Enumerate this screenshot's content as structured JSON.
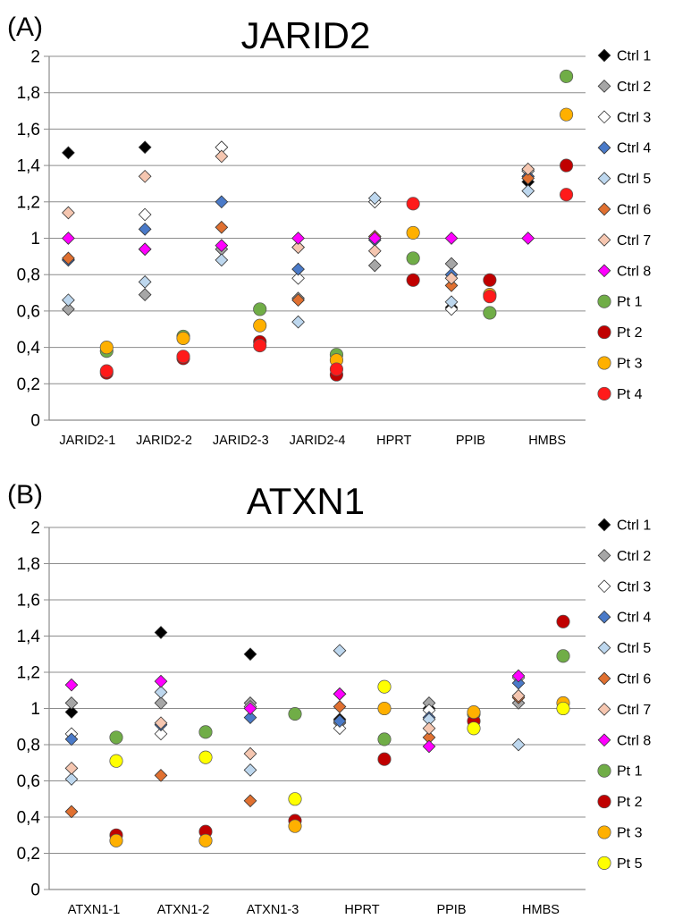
{
  "panels": [
    {
      "label": "(A)",
      "chart_data": {
        "type": "scatter",
        "title": "JARID2",
        "xlabel": "",
        "ylabel": "",
        "ylim": [
          0,
          2
        ],
        "yticks": [
          "0",
          "0,2",
          "0,4",
          "0,6",
          "0,8",
          "1",
          "1,2",
          "1,4",
          "1,6",
          "1,8",
          "2"
        ],
        "grid": true,
        "legend": "right",
        "categories": [
          "JARID2-1",
          "JARID2-2",
          "JARID2-3",
          "JARID2-4",
          "HPRT",
          "PPIB",
          "HMBS"
        ],
        "series": [
          {
            "name": "Ctrl 1",
            "marker": "diamond",
            "color": "#000000",
            "group": "ctrl",
            "values": [
              1.47,
              1.5,
              1.5,
              0.95,
              1.2,
              0.62,
              1.31
            ]
          },
          {
            "name": "Ctrl 2",
            "marker": "diamond",
            "color": "#a6a6a6",
            "group": "ctrl",
            "values": [
              0.61,
              0.69,
              0.94,
              0.67,
              0.85,
              0.86,
              1.37
            ]
          },
          {
            "name": "Ctrl 3",
            "marker": "diamond",
            "color": "#ffffff",
            "group": "ctrl",
            "values": [
              0.88,
              1.13,
              1.5,
              0.78,
              1.2,
              0.61,
              1.37
            ]
          },
          {
            "name": "Ctrl 4",
            "marker": "diamond",
            "color": "#4a7ac8",
            "group": "ctrl",
            "values": [
              0.88,
              1.05,
              1.2,
              0.83,
              0.99,
              0.8,
              1.34
            ]
          },
          {
            "name": "Ctrl 5",
            "marker": "diamond",
            "color": "#bdd7ee",
            "group": "ctrl",
            "values": [
              0.66,
              0.76,
              0.88,
              0.54,
              1.22,
              0.65,
              1.26
            ]
          },
          {
            "name": "Ctrl 6",
            "marker": "diamond",
            "color": "#e07030",
            "group": "ctrl",
            "values": [
              0.89,
              0.94,
              1.06,
              0.66,
              1.01,
              0.74,
              1.33
            ]
          },
          {
            "name": "Ctrl 7",
            "marker": "diamond",
            "color": "#f5c6b0",
            "group": "ctrl",
            "values": [
              1.14,
              1.34,
              1.45,
              0.95,
              0.93,
              0.78,
              1.38
            ]
          },
          {
            "name": "Ctrl 8",
            "marker": "diamond",
            "color": "#ff00ff",
            "group": "ctrl",
            "values": [
              1.0,
              0.94,
              0.96,
              1.0,
              1.0,
              1.0,
              1.0
            ]
          },
          {
            "name": "Pt 1",
            "marker": "circle",
            "color": "#70ad47",
            "group": "pt",
            "values": [
              0.38,
              0.46,
              0.61,
              0.36,
              0.89,
              0.59,
              1.89
            ]
          },
          {
            "name": "Pt 2",
            "marker": "circle",
            "color": "#c00000",
            "group": "pt",
            "values": [
              0.26,
              0.34,
              0.43,
              0.25,
              0.77,
              0.77,
              1.4
            ]
          },
          {
            "name": "Pt 3",
            "marker": "circle",
            "color": "#ffb000",
            "group": "pt",
            "values": [
              0.4,
              0.45,
              0.52,
              0.33,
              1.03,
              0.69,
              1.68
            ]
          },
          {
            "name": "Pt 4",
            "marker": "circle",
            "color": "#ff1a1a",
            "group": "pt",
            "values": [
              0.27,
              0.35,
              0.41,
              0.28,
              1.19,
              0.68,
              1.24
            ]
          }
        ]
      }
    },
    {
      "label": "(B)",
      "chart_data": {
        "type": "scatter",
        "title": "ATXN1",
        "xlabel": "",
        "ylabel": "",
        "ylim": [
          0,
          2
        ],
        "yticks": [
          "0",
          "0,2",
          "0,4",
          "0,6",
          "0,8",
          "1",
          "1,2",
          "1,4",
          "1,6",
          "1,8",
          "2"
        ],
        "grid": true,
        "legend": "right",
        "categories": [
          "ATXN1-1",
          "ATXN1-2",
          "ATXN1-3",
          "HPRT",
          "PPIB",
          "HMBS"
        ],
        "series": [
          {
            "name": "Ctrl 1",
            "marker": "diamond",
            "color": "#000000",
            "group": "ctrl",
            "values": [
              0.98,
              1.42,
              1.3,
              0.94,
              1.0,
              1.07
            ]
          },
          {
            "name": "Ctrl 2",
            "marker": "diamond",
            "color": "#a6a6a6",
            "group": "ctrl",
            "values": [
              1.03,
              1.03,
              1.03,
              0.92,
              1.03,
              1.03
            ]
          },
          {
            "name": "Ctrl 3",
            "marker": "diamond",
            "color": "#ffffff",
            "group": "ctrl",
            "values": [
              0.86,
              0.86,
              1.01,
              0.89,
              0.99,
              1.17
            ]
          },
          {
            "name": "Ctrl 4",
            "marker": "diamond",
            "color": "#4a7ac8",
            "group": "ctrl",
            "values": [
              0.83,
              0.91,
              0.95,
              0.93,
              0.95,
              1.14
            ]
          },
          {
            "name": "Ctrl 5",
            "marker": "diamond",
            "color": "#bdd7ee",
            "group": "ctrl",
            "values": [
              0.61,
              1.09,
              0.66,
              1.32,
              0.94,
              0.8
            ]
          },
          {
            "name": "Ctrl 6",
            "marker": "diamond",
            "color": "#e07030",
            "group": "ctrl",
            "values": [
              0.43,
              0.63,
              0.49,
              1.01,
              0.84,
              1.06
            ]
          },
          {
            "name": "Ctrl 7",
            "marker": "diamond",
            "color": "#f5c6b0",
            "group": "ctrl",
            "values": [
              0.67,
              0.92,
              0.75,
              1.08,
              0.89,
              1.07
            ]
          },
          {
            "name": "Ctrl 8",
            "marker": "diamond",
            "color": "#ff00ff",
            "group": "ctrl",
            "values": [
              1.13,
              1.15,
              1.0,
              1.08,
              0.79,
              1.18
            ]
          },
          {
            "name": "Pt 1",
            "marker": "circle",
            "color": "#70ad47",
            "group": "pt",
            "values": [
              0.84,
              0.87,
              0.97,
              0.83,
              0.97,
              1.29
            ]
          },
          {
            "name": "Pt 2",
            "marker": "circle",
            "color": "#c00000",
            "group": "pt",
            "values": [
              0.3,
              0.32,
              0.38,
              0.72,
              0.93,
              1.48
            ]
          },
          {
            "name": "Pt 3",
            "marker": "circle",
            "color": "#ffb000",
            "group": "pt",
            "values": [
              0.27,
              0.27,
              0.35,
              1.0,
              0.98,
              1.03
            ]
          },
          {
            "name": "Pt 5",
            "marker": "circle",
            "color": "#ffff00",
            "group": "pt",
            "values": [
              0.71,
              0.73,
              0.5,
              1.12,
              0.89,
              1.0
            ]
          }
        ]
      }
    }
  ]
}
